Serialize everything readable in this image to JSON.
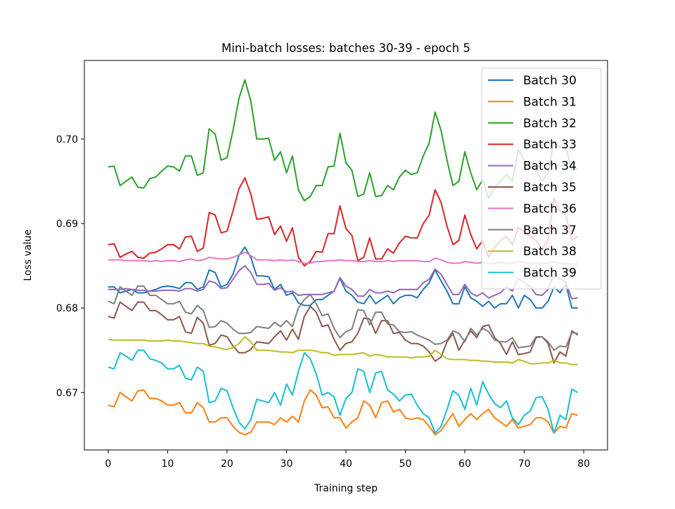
{
  "chart_data": {
    "type": "line",
    "title": "Mini-batch losses: batches 30-39 - epoch 5",
    "xlabel": "Training step",
    "ylabel": "Loss value",
    "xlim": [
      -4,
      84
    ],
    "ylim": [
      0.6632,
      0.7093
    ],
    "xticks": [
      0,
      10,
      20,
      30,
      40,
      50,
      60,
      70,
      80
    ],
    "xtick_labels": [
      "0",
      "10",
      "20",
      "30",
      "40",
      "50",
      "60",
      "70",
      "80"
    ],
    "yticks": [
      0.67,
      0.68,
      0.69,
      0.7
    ],
    "ytick_labels": [
      "0.67",
      "0.68",
      "0.69",
      "0.70"
    ],
    "grid": false,
    "legend_position": "top-right",
    "x": [
      0,
      1,
      2,
      3,
      4,
      5,
      6,
      7,
      8,
      9,
      10,
      11,
      12,
      13,
      14,
      15,
      16,
      17,
      18,
      19,
      20,
      21,
      22,
      23,
      24,
      25,
      26,
      27,
      28,
      29,
      30,
      31,
      32,
      33,
      34,
      35,
      36,
      37,
      38,
      39,
      40,
      41,
      42,
      43,
      44,
      45,
      46,
      47,
      48,
      49,
      50,
      51,
      52,
      53,
      54,
      55,
      56,
      57,
      58,
      59,
      60,
      61,
      62,
      63,
      64,
      65,
      66,
      67,
      68,
      69,
      70,
      71,
      72,
      73,
      74,
      75,
      76,
      77,
      78,
      79
    ],
    "series": [
      {
        "name": "Batch 30",
        "color": "#1f77b4",
        "values": [
          0.6825,
          0.6825,
          0.6818,
          0.682,
          0.6822,
          0.6818,
          0.6818,
          0.682,
          0.6822,
          0.6825,
          0.6826,
          0.6825,
          0.6823,
          0.683,
          0.683,
          0.6822,
          0.6825,
          0.6845,
          0.6842,
          0.6825,
          0.6828,
          0.684,
          0.6862,
          0.6872,
          0.686,
          0.6838,
          0.6838,
          0.6837,
          0.6822,
          0.6828,
          0.6815,
          0.6818,
          0.6806,
          0.6803,
          0.6803,
          0.681,
          0.681,
          0.6815,
          0.682,
          0.6835,
          0.682,
          0.6815,
          0.6807,
          0.6805,
          0.6815,
          0.6805,
          0.681,
          0.6815,
          0.6805,
          0.6812,
          0.6815,
          0.6815,
          0.6812,
          0.6822,
          0.683,
          0.6845,
          0.6832,
          0.682,
          0.6805,
          0.6805,
          0.6825,
          0.6812,
          0.6808,
          0.6802,
          0.6808,
          0.68,
          0.6805,
          0.6805,
          0.6815,
          0.68,
          0.6815,
          0.681,
          0.68,
          0.68,
          0.6808,
          0.6825,
          0.6818,
          0.6828,
          0.68,
          0.68
        ]
      },
      {
        "name": "Batch 31",
        "color": "#ff7f0e",
        "values": [
          0.6685,
          0.6683,
          0.67,
          0.6695,
          0.669,
          0.6702,
          0.6703,
          0.6693,
          0.6693,
          0.669,
          0.6685,
          0.6685,
          0.6688,
          0.6676,
          0.6676,
          0.6688,
          0.6682,
          0.6665,
          0.6665,
          0.667,
          0.667,
          0.666,
          0.6653,
          0.665,
          0.6653,
          0.6665,
          0.6665,
          0.6665,
          0.6662,
          0.667,
          0.6665,
          0.6672,
          0.6665,
          0.669,
          0.6703,
          0.6697,
          0.6682,
          0.6683,
          0.667,
          0.667,
          0.6658,
          0.6665,
          0.667,
          0.669,
          0.6685,
          0.667,
          0.6688,
          0.669,
          0.6677,
          0.668,
          0.667,
          0.6668,
          0.667,
          0.6668,
          0.666,
          0.665,
          0.6655,
          0.6665,
          0.6675,
          0.666,
          0.6668,
          0.6675,
          0.6668,
          0.6675,
          0.668,
          0.667,
          0.6665,
          0.666,
          0.6668,
          0.6658,
          0.666,
          0.6662,
          0.667,
          0.667,
          0.6665,
          0.6652,
          0.666,
          0.6658,
          0.6675,
          0.6673
        ]
      },
      {
        "name": "Batch 32",
        "color": "#2ca02c",
        "values": [
          0.6967,
          0.6968,
          0.6945,
          0.695,
          0.6955,
          0.6943,
          0.6942,
          0.6953,
          0.6955,
          0.6962,
          0.6968,
          0.6967,
          0.6962,
          0.698,
          0.698,
          0.6957,
          0.696,
          0.7012,
          0.7006,
          0.6975,
          0.6978,
          0.701,
          0.7048,
          0.707,
          0.7045,
          0.7,
          0.7,
          0.7001,
          0.6975,
          0.6985,
          0.696,
          0.698,
          0.694,
          0.6927,
          0.6932,
          0.6945,
          0.6945,
          0.6967,
          0.6968,
          0.7007,
          0.6972,
          0.6963,
          0.6932,
          0.6935,
          0.696,
          0.6932,
          0.6933,
          0.6945,
          0.694,
          0.6955,
          0.6963,
          0.6958,
          0.696,
          0.698,
          0.6995,
          0.7032,
          0.701,
          0.6975,
          0.6945,
          0.695,
          0.6985,
          0.696,
          0.694,
          0.6952,
          0.693,
          0.6942,
          0.695,
          0.6958,
          0.695,
          0.6988,
          0.6975,
          0.6968,
          0.6963,
          0.695,
          0.696,
          0.6998,
          0.699,
          0.699,
          0.6963,
          0.6965
        ]
      },
      {
        "name": "Batch 33",
        "color": "#d62728",
        "values": [
          0.6875,
          0.6876,
          0.686,
          0.6864,
          0.6867,
          0.686,
          0.6859,
          0.6865,
          0.6866,
          0.687,
          0.6875,
          0.6875,
          0.687,
          0.6884,
          0.6885,
          0.6867,
          0.6871,
          0.6913,
          0.691,
          0.6889,
          0.6891,
          0.6915,
          0.6941,
          0.6954,
          0.6935,
          0.6905,
          0.6906,
          0.6908,
          0.6887,
          0.6897,
          0.6879,
          0.6895,
          0.686,
          0.685,
          0.6855,
          0.6867,
          0.6866,
          0.6888,
          0.6888,
          0.6921,
          0.6894,
          0.6886,
          0.6856,
          0.686,
          0.6883,
          0.6858,
          0.6858,
          0.687,
          0.6865,
          0.6877,
          0.6885,
          0.6883,
          0.6883,
          0.69,
          0.691,
          0.694,
          0.6925,
          0.6897,
          0.6875,
          0.688,
          0.691,
          0.6887,
          0.687,
          0.688,
          0.686,
          0.6872,
          0.688,
          0.6885,
          0.6875,
          0.6895,
          0.689,
          0.6885,
          0.688,
          0.687,
          0.688,
          0.693,
          0.6915,
          0.691,
          0.688,
          0.6885
        ]
      },
      {
        "name": "Batch 34",
        "color": "#9467bd",
        "values": [
          0.6822,
          0.6822,
          0.6822,
          0.6823,
          0.6822,
          0.6821,
          0.6821,
          0.682,
          0.682,
          0.6821,
          0.6821,
          0.6821,
          0.682,
          0.6823,
          0.6823,
          0.682,
          0.6822,
          0.6832,
          0.683,
          0.6823,
          0.6824,
          0.6834,
          0.6844,
          0.685,
          0.6842,
          0.6828,
          0.6828,
          0.6829,
          0.6821,
          0.6824,
          0.6819,
          0.682,
          0.6815,
          0.6816,
          0.6816,
          0.6816,
          0.6816,
          0.6818,
          0.682,
          0.6836,
          0.6826,
          0.6822,
          0.6814,
          0.6814,
          0.6822,
          0.6818,
          0.6818,
          0.682,
          0.6818,
          0.6822,
          0.6822,
          0.6822,
          0.6822,
          0.683,
          0.6834,
          0.6846,
          0.684,
          0.6828,
          0.6816,
          0.6816,
          0.6828,
          0.6818,
          0.6814,
          0.6818,
          0.6812,
          0.6815,
          0.6818,
          0.6825,
          0.682,
          0.6835,
          0.683,
          0.6825,
          0.6816,
          0.6815,
          0.6822,
          0.684,
          0.6835,
          0.683,
          0.6811,
          0.6812
        ]
      },
      {
        "name": "Batch 35",
        "color": "#8c564b",
        "values": [
          0.679,
          0.6788,
          0.6807,
          0.6802,
          0.6797,
          0.6807,
          0.6807,
          0.6797,
          0.6797,
          0.6792,
          0.6786,
          0.6786,
          0.679,
          0.6772,
          0.677,
          0.6789,
          0.6782,
          0.6756,
          0.6758,
          0.6768,
          0.6766,
          0.6755,
          0.6747,
          0.6747,
          0.6751,
          0.676,
          0.6759,
          0.6758,
          0.6766,
          0.6773,
          0.6762,
          0.6775,
          0.6763,
          0.679,
          0.6802,
          0.6795,
          0.6778,
          0.678,
          0.6763,
          0.675,
          0.6758,
          0.676,
          0.677,
          0.6788,
          0.6787,
          0.677,
          0.6785,
          0.6785,
          0.677,
          0.6771,
          0.6762,
          0.6758,
          0.6758,
          0.6755,
          0.6748,
          0.6737,
          0.6742,
          0.676,
          0.677,
          0.675,
          0.6762,
          0.6773,
          0.6765,
          0.6778,
          0.678,
          0.6765,
          0.6758,
          0.6745,
          0.676,
          0.6745,
          0.6746,
          0.6748,
          0.6765,
          0.6766,
          0.6758,
          0.6735,
          0.6748,
          0.6743,
          0.6773,
          0.6768
        ]
      },
      {
        "name": "Batch 36",
        "color": "#e377c2",
        "values": [
          0.6857,
          0.6857,
          0.6857,
          0.6856,
          0.6856,
          0.6856,
          0.6856,
          0.6855,
          0.6856,
          0.6855,
          0.6856,
          0.6856,
          0.6855,
          0.6857,
          0.6858,
          0.6856,
          0.6857,
          0.686,
          0.6859,
          0.6858,
          0.6858,
          0.686,
          0.6863,
          0.6866,
          0.6862,
          0.6857,
          0.6857,
          0.6857,
          0.6856,
          0.6857,
          0.6856,
          0.6857,
          0.6855,
          0.6853,
          0.6853,
          0.6855,
          0.6855,
          0.6856,
          0.6856,
          0.6857,
          0.6856,
          0.6856,
          0.6855,
          0.6855,
          0.6856,
          0.6855,
          0.6855,
          0.6856,
          0.6855,
          0.6856,
          0.6856,
          0.6856,
          0.6856,
          0.6855,
          0.6855,
          0.6859,
          0.6857,
          0.6854,
          0.6853,
          0.6853,
          0.6855,
          0.6854,
          0.6853,
          0.6854,
          0.6853,
          0.6853,
          0.6854,
          0.6853,
          0.6853,
          0.6855,
          0.6854,
          0.6853,
          0.6853,
          0.6853,
          0.6853,
          0.6855,
          0.6853,
          0.6853,
          0.6852,
          0.6852
        ]
      },
      {
        "name": "Batch 37",
        "color": "#7f7f7f",
        "values": [
          0.6808,
          0.6805,
          0.6825,
          0.682,
          0.6815,
          0.6826,
          0.6826,
          0.6815,
          0.6815,
          0.681,
          0.6805,
          0.6805,
          0.6808,
          0.6795,
          0.6793,
          0.6803,
          0.6797,
          0.6777,
          0.6778,
          0.6785,
          0.6782,
          0.6775,
          0.677,
          0.677,
          0.6771,
          0.6778,
          0.6777,
          0.6776,
          0.6783,
          0.6778,
          0.6785,
          0.6778,
          0.68,
          0.681,
          0.6816,
          0.6805,
          0.6791,
          0.6793,
          0.6776,
          0.6765,
          0.6772,
          0.6775,
          0.6798,
          0.6797,
          0.678,
          0.6795,
          0.6795,
          0.6781,
          0.678,
          0.6772,
          0.6771,
          0.6772,
          0.6768,
          0.6765,
          0.6762,
          0.6757,
          0.6758,
          0.6762,
          0.6773,
          0.677,
          0.676,
          0.6776,
          0.6768,
          0.6776,
          0.6772,
          0.6762,
          0.676,
          0.676,
          0.6765,
          0.6753,
          0.6754,
          0.6755,
          0.6766,
          0.6766,
          0.676,
          0.675,
          0.6755,
          0.6754,
          0.6771,
          0.677
        ]
      },
      {
        "name": "Batch 38",
        "color": "#bcbd22",
        "values": [
          0.6763,
          0.6762,
          0.6762,
          0.6762,
          0.6762,
          0.6762,
          0.6762,
          0.6761,
          0.6761,
          0.6761,
          0.6762,
          0.6761,
          0.6761,
          0.676,
          0.6759,
          0.6758,
          0.6758,
          0.6755,
          0.6754,
          0.6752,
          0.6751,
          0.6753,
          0.6758,
          0.6766,
          0.676,
          0.675,
          0.675,
          0.675,
          0.6749,
          0.6748,
          0.6748,
          0.6747,
          0.675,
          0.675,
          0.675,
          0.6749,
          0.6747,
          0.6747,
          0.6744,
          0.6745,
          0.6745,
          0.6745,
          0.6746,
          0.6747,
          0.6743,
          0.6745,
          0.6744,
          0.6742,
          0.6742,
          0.6742,
          0.6742,
          0.6741,
          0.6742,
          0.6742,
          0.6743,
          0.675,
          0.6745,
          0.674,
          0.6739,
          0.6739,
          0.6739,
          0.6738,
          0.6738,
          0.6737,
          0.6737,
          0.6736,
          0.6736,
          0.6736,
          0.6735,
          0.6739,
          0.6737,
          0.6734,
          0.6734,
          0.6735,
          0.6735,
          0.6738,
          0.6735,
          0.6735,
          0.6733,
          0.6733
        ]
      },
      {
        "name": "Batch 39",
        "color": "#17becf",
        "values": [
          0.673,
          0.6728,
          0.6747,
          0.6743,
          0.6738,
          0.675,
          0.675,
          0.674,
          0.6738,
          0.6735,
          0.6728,
          0.6728,
          0.6732,
          0.6717,
          0.6715,
          0.673,
          0.6725,
          0.6688,
          0.669,
          0.6705,
          0.6702,
          0.6682,
          0.6665,
          0.6657,
          0.6668,
          0.6692,
          0.669,
          0.6688,
          0.67,
          0.6685,
          0.671,
          0.6697,
          0.6725,
          0.6747,
          0.674,
          0.6722,
          0.6697,
          0.67,
          0.6695,
          0.6673,
          0.6693,
          0.67,
          0.6728,
          0.6725,
          0.67,
          0.6723,
          0.6725,
          0.6703,
          0.6698,
          0.669,
          0.6697,
          0.6698,
          0.6685,
          0.6675,
          0.667,
          0.6652,
          0.666,
          0.668,
          0.6702,
          0.6697,
          0.668,
          0.6705,
          0.6685,
          0.6713,
          0.6698,
          0.6687,
          0.6682,
          0.669,
          0.667,
          0.6662,
          0.6673,
          0.6678,
          0.6694,
          0.6695,
          0.668,
          0.6652,
          0.6673,
          0.6668,
          0.6704,
          0.67
        ]
      }
    ]
  }
}
